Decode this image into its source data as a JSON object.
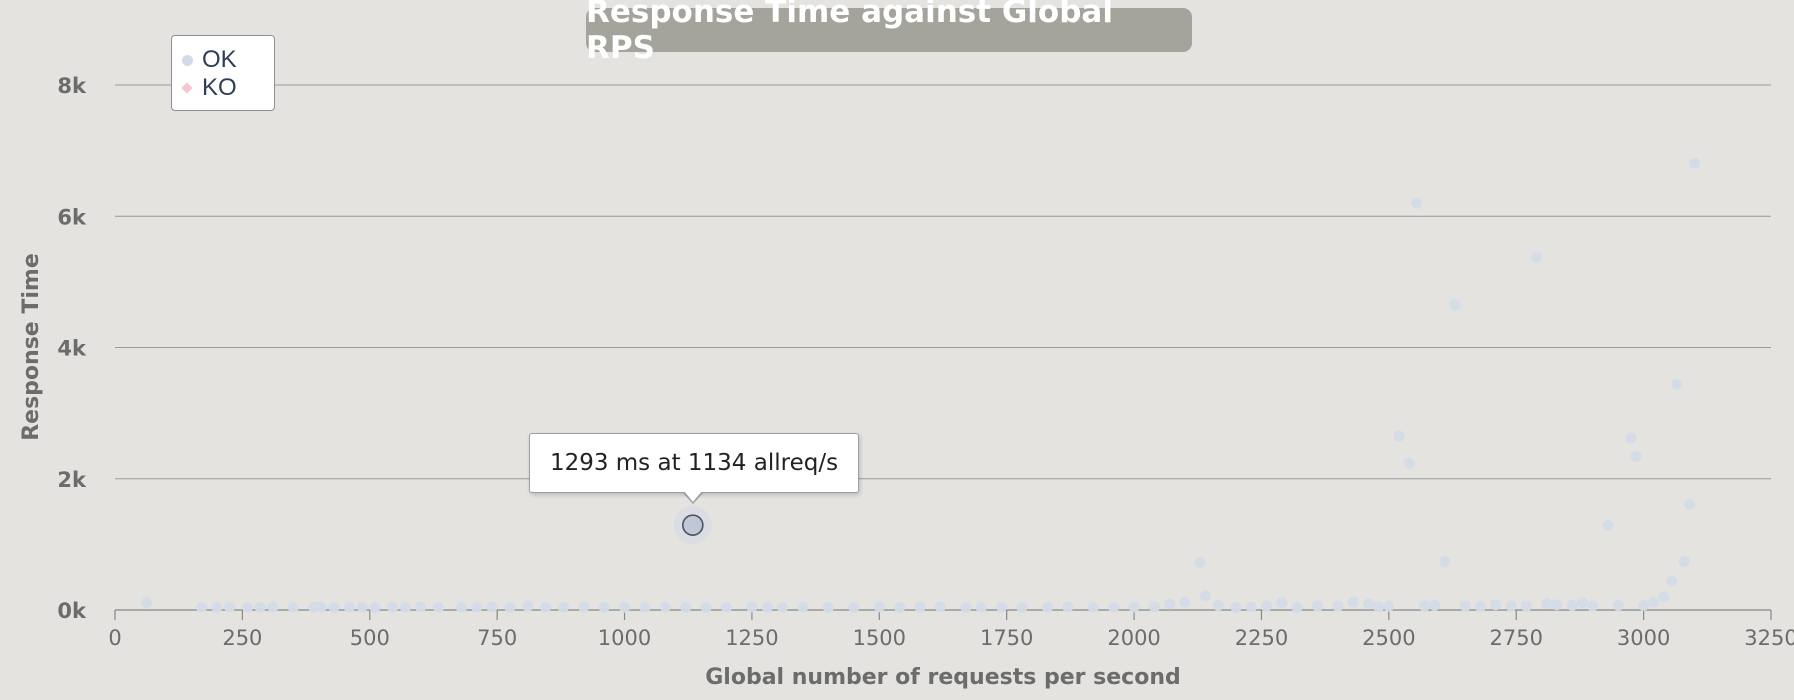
{
  "chart_data": {
    "type": "scatter",
    "title": "Response Time against Global RPS",
    "xlabel": "Global number of requests per second",
    "ylabel": "Response Time",
    "xlim": [
      0,
      3250
    ],
    "ylim": [
      0,
      8000
    ],
    "x_ticks": [
      0,
      250,
      500,
      750,
      1000,
      1250,
      1500,
      1750,
      2000,
      2250,
      2500,
      2750,
      3000,
      3250
    ],
    "x_tick_labels": [
      "0",
      "250",
      "500",
      "750",
      "1000",
      "1250",
      "1500",
      "1750",
      "2000",
      "2250",
      "2500",
      "2750",
      "3000",
      "3250"
    ],
    "y_ticks": [
      0,
      2000,
      4000,
      6000,
      8000
    ],
    "y_tick_labels": [
      "0k",
      "2k",
      "4k",
      "6k",
      "8k"
    ],
    "grid": true,
    "legend": {
      "position": "top-left",
      "entries": [
        {
          "name": "OK",
          "marker": "circle",
          "color": "#d3dbe7"
        },
        {
          "name": "KO",
          "marker": "diamond",
          "color": "#f3c7cf"
        }
      ]
    },
    "series": [
      {
        "name": "OK",
        "color": "#d3dbe7",
        "points": [
          [
            62,
            110
          ],
          [
            170,
            40
          ],
          [
            200,
            40
          ],
          [
            225,
            45
          ],
          [
            260,
            40
          ],
          [
            285,
            40
          ],
          [
            310,
            45
          ],
          [
            350,
            40
          ],
          [
            390,
            40
          ],
          [
            405,
            45
          ],
          [
            430,
            40
          ],
          [
            460,
            40
          ],
          [
            485,
            45
          ],
          [
            510,
            40
          ],
          [
            545,
            40
          ],
          [
            570,
            40
          ],
          [
            600,
            45
          ],
          [
            635,
            40
          ],
          [
            680,
            40
          ],
          [
            710,
            40
          ],
          [
            740,
            45
          ],
          [
            775,
            40
          ],
          [
            810,
            60
          ],
          [
            845,
            40
          ],
          [
            880,
            40
          ],
          [
            920,
            45
          ],
          [
            960,
            40
          ],
          [
            1000,
            40
          ],
          [
            1040,
            40
          ],
          [
            1080,
            45
          ],
          [
            1120,
            40
          ],
          [
            1160,
            40
          ],
          [
            1200,
            40
          ],
          [
            1250,
            45
          ],
          [
            1280,
            40
          ],
          [
            1310,
            40
          ],
          [
            1350,
            45
          ],
          [
            1400,
            40
          ],
          [
            1450,
            40
          ],
          [
            1500,
            45
          ],
          [
            1540,
            40
          ],
          [
            1580,
            40
          ],
          [
            1620,
            45
          ],
          [
            1670,
            40
          ],
          [
            1700,
            40
          ],
          [
            1740,
            45
          ],
          [
            1780,
            40
          ],
          [
            1830,
            40
          ],
          [
            1870,
            45
          ],
          [
            1920,
            40
          ],
          [
            1960,
            40
          ],
          [
            2000,
            45
          ],
          [
            2040,
            50
          ],
          [
            2070,
            90
          ],
          [
            2100,
            120
          ],
          [
            2130,
            730
          ],
          [
            2140,
            220
          ],
          [
            2165,
            70
          ],
          [
            2200,
            40
          ],
          [
            2230,
            45
          ],
          [
            2260,
            60
          ],
          [
            2290,
            110
          ],
          [
            2320,
            40
          ],
          [
            2360,
            60
          ],
          [
            2400,
            60
          ],
          [
            2430,
            120
          ],
          [
            2460,
            90
          ],
          [
            2480,
            50
          ],
          [
            2500,
            60
          ],
          [
            2520,
            2650
          ],
          [
            2540,
            2240
          ],
          [
            2555,
            6200
          ],
          [
            2570,
            60
          ],
          [
            2590,
            70
          ],
          [
            2610,
            740
          ],
          [
            2630,
            4650
          ],
          [
            2650,
            60
          ],
          [
            2680,
            50
          ],
          [
            2710,
            80
          ],
          [
            2740,
            60
          ],
          [
            2770,
            60
          ],
          [
            2790,
            5380
          ],
          [
            2810,
            100
          ],
          [
            2830,
            80
          ],
          [
            2860,
            70
          ],
          [
            2880,
            110
          ],
          [
            2900,
            60
          ],
          [
            2930,
            1290
          ],
          [
            2950,
            70
          ],
          [
            2975,
            2620
          ],
          [
            2985,
            2340
          ],
          [
            3000,
            70
          ],
          [
            3020,
            120
          ],
          [
            3040,
            200
          ],
          [
            3055,
            440
          ],
          [
            3065,
            3440
          ],
          [
            3080,
            740
          ],
          [
            3090,
            1610
          ],
          [
            3100,
            6810
          ]
        ]
      },
      {
        "name": "KO",
        "color": "#f3c7cf",
        "points": []
      }
    ],
    "highlighted_point": {
      "x": 1134,
      "y": 1293
    },
    "tooltip": "1293 ms at 1134 allreq/s"
  }
}
